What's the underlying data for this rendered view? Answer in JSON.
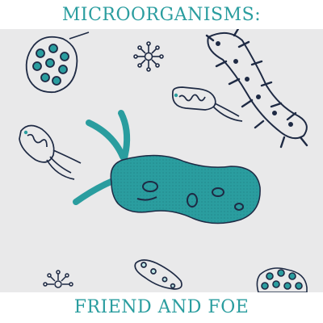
{
  "header": {
    "title": "MICROORGANISMS:"
  },
  "footer": {
    "subtitle": "FRIEND AND FOE"
  },
  "colors": {
    "teal": "#2a9d9f",
    "teal_dark": "#1f7f83",
    "navy": "#1e2a44",
    "panel": "#e9e9ea",
    "light_teal": "#bfe6e6"
  },
  "illustration": {
    "subject": "microorganisms",
    "icons": [
      "cell-cluster-icon",
      "virus-icon",
      "bacterium-icon",
      "spiky-bacterium-icon",
      "flagellated-bacterium-icon",
      "large-bacterium-icon"
    ]
  }
}
